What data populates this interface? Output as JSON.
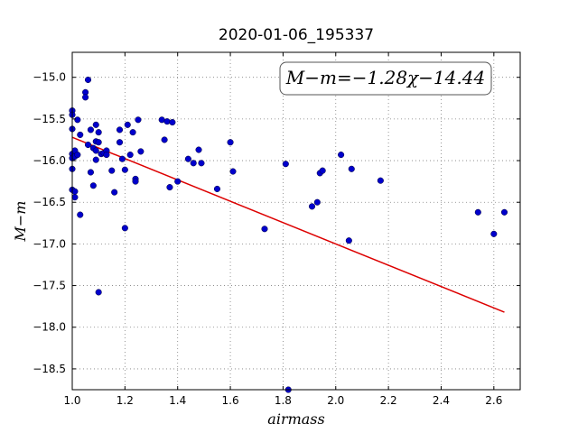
{
  "chart_data": {
    "type": "scatter",
    "title": "2020-01-06_195337",
    "xlabel": "airmass",
    "ylabel": "M−m",
    "xlim": [
      1.0,
      2.7
    ],
    "ylim": [
      -18.75,
      -14.7
    ],
    "y_inverted": true,
    "grid": true,
    "x_ticks": [
      1.0,
      1.2,
      1.4,
      1.6,
      1.8,
      2.0,
      2.2,
      2.4,
      2.6
    ],
    "x_tick_labels": [
      "1.0",
      "1.2",
      "1.4",
      "1.6",
      "1.8",
      "2.0",
      "2.2",
      "2.4",
      "2.6"
    ],
    "y_ticks": [
      -15.0,
      -15.5,
      -16.0,
      -16.5,
      -17.0,
      -17.5,
      -18.0,
      -18.5
    ],
    "y_tick_labels": [
      "−15.0",
      "−15.5",
      "−16.0",
      "−16.5",
      "−17.0",
      "−17.5",
      "−18.0",
      "−18.5"
    ],
    "annotation": "M−m=−1.28χ−14.44",
    "marker_color": "#0000cc",
    "fit_color": "#dd0000",
    "fit": {
      "slope": -1.28,
      "intercept": -14.44,
      "x_range": [
        1.0,
        2.64
      ]
    },
    "points": [
      {
        "x": 1.0,
        "y": -15.4
      },
      {
        "x": 1.0,
        "y": -15.45
      },
      {
        "x": 1.0,
        "y": -15.62
      },
      {
        "x": 1.0,
        "y": -15.92
      },
      {
        "x": 1.0,
        "y": -15.97
      },
      {
        "x": 1.0,
        "y": -16.1
      },
      {
        "x": 1.0,
        "y": -16.35
      },
      {
        "x": 1.01,
        "y": -15.88
      },
      {
        "x": 1.01,
        "y": -15.95
      },
      {
        "x": 1.01,
        "y": -16.37
      },
      {
        "x": 1.01,
        "y": -16.44
      },
      {
        "x": 1.02,
        "y": -15.93
      },
      {
        "x": 1.02,
        "y": -15.51
      },
      {
        "x": 1.03,
        "y": -15.69
      },
      {
        "x": 1.03,
        "y": -16.65
      },
      {
        "x": 1.05,
        "y": -15.18
      },
      {
        "x": 1.05,
        "y": -15.24
      },
      {
        "x": 1.06,
        "y": -15.03
      },
      {
        "x": 1.06,
        "y": -15.81
      },
      {
        "x": 1.07,
        "y": -16.14
      },
      {
        "x": 1.07,
        "y": -15.63
      },
      {
        "x": 1.08,
        "y": -16.3
      },
      {
        "x": 1.08,
        "y": -15.85
      },
      {
        "x": 1.09,
        "y": -15.57
      },
      {
        "x": 1.09,
        "y": -15.77
      },
      {
        "x": 1.09,
        "y": -15.88
      },
      {
        "x": 1.09,
        "y": -15.99
      },
      {
        "x": 1.1,
        "y": -15.66
      },
      {
        "x": 1.1,
        "y": -15.78
      },
      {
        "x": 1.1,
        "y": -17.58
      },
      {
        "x": 1.11,
        "y": -15.92
      },
      {
        "x": 1.12,
        "y": -15.91
      },
      {
        "x": 1.13,
        "y": -15.88
      },
      {
        "x": 1.13,
        "y": -15.93
      },
      {
        "x": 1.15,
        "y": -16.12
      },
      {
        "x": 1.16,
        "y": -16.38
      },
      {
        "x": 1.18,
        "y": -15.78
      },
      {
        "x": 1.18,
        "y": -15.63
      },
      {
        "x": 1.19,
        "y": -15.98
      },
      {
        "x": 1.2,
        "y": -16.11
      },
      {
        "x": 1.2,
        "y": -16.81
      },
      {
        "x": 1.21,
        "y": -15.57
      },
      {
        "x": 1.22,
        "y": -15.93
      },
      {
        "x": 1.23,
        "y": -15.66
      },
      {
        "x": 1.24,
        "y": -16.22
      },
      {
        "x": 1.24,
        "y": -16.25
      },
      {
        "x": 1.25,
        "y": -15.51
      },
      {
        "x": 1.26,
        "y": -15.89
      },
      {
        "x": 1.34,
        "y": -15.51
      },
      {
        "x": 1.35,
        "y": -15.75
      },
      {
        "x": 1.36,
        "y": -15.53
      },
      {
        "x": 1.37,
        "y": -16.32
      },
      {
        "x": 1.38,
        "y": -15.54
      },
      {
        "x": 1.4,
        "y": -16.25
      },
      {
        "x": 1.44,
        "y": -15.98
      },
      {
        "x": 1.46,
        "y": -16.03
      },
      {
        "x": 1.48,
        "y": -15.87
      },
      {
        "x": 1.49,
        "y": -16.03
      },
      {
        "x": 1.55,
        "y": -16.34
      },
      {
        "x": 1.6,
        "y": -15.78
      },
      {
        "x": 1.61,
        "y": -16.13
      },
      {
        "x": 1.73,
        "y": -16.82
      },
      {
        "x": 1.81,
        "y": -16.04
      },
      {
        "x": 1.91,
        "y": -16.55
      },
      {
        "x": 1.93,
        "y": -16.5
      },
      {
        "x": 1.94,
        "y": -16.15
      },
      {
        "x": 1.95,
        "y": -16.12
      },
      {
        "x": 2.02,
        "y": -15.93
      },
      {
        "x": 2.05,
        "y": -16.96
      },
      {
        "x": 2.06,
        "y": -16.1
      },
      {
        "x": 2.17,
        "y": -16.24
      },
      {
        "x": 2.54,
        "y": -16.62
      },
      {
        "x": 2.6,
        "y": -16.88
      },
      {
        "x": 2.64,
        "y": -16.62
      },
      {
        "x": 1.82,
        "y": -18.75
      }
    ]
  }
}
